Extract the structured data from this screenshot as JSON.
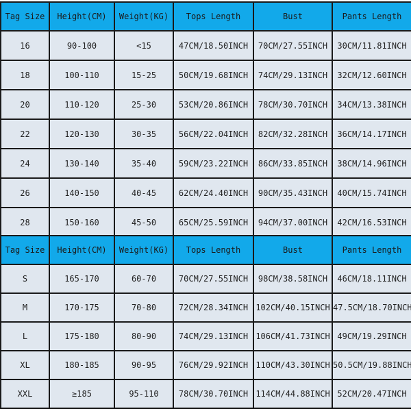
{
  "colors": {
    "header": "#12a9ea",
    "cell": "#e0e7ef",
    "border": "#1a1a1a"
  },
  "headers": [
    "Tag Size",
    "Height(CM)",
    "Weight(KG)",
    "Tops Length",
    "Bust",
    "Pants Length"
  ],
  "kids_rows": [
    [
      "16",
      "90-100",
      "<15",
      "47CM/18.50INCH",
      "70CM/27.55INCH",
      "30CM/11.81INCH"
    ],
    [
      "18",
      "100-110",
      "15-25",
      "50CM/19.68INCH",
      "74CM/29.13INCH",
      "32CM/12.60INCH"
    ],
    [
      "20",
      "110-120",
      "25-30",
      "53CM/20.86INCH",
      "78CM/30.70INCH",
      "34CM/13.38INCH"
    ],
    [
      "22",
      "120-130",
      "30-35",
      "56CM/22.04INCH",
      "82CM/32.28INCH",
      "36CM/14.17INCH"
    ],
    [
      "24",
      "130-140",
      "35-40",
      "59CM/23.22INCH",
      "86CM/33.85INCH",
      "38CM/14.96INCH"
    ],
    [
      "26",
      "140-150",
      "40-45",
      "62CM/24.40INCH",
      "90CM/35.43INCH",
      "40CM/15.74INCH"
    ],
    [
      "28",
      "150-160",
      "45-50",
      "65CM/25.59INCH",
      "94CM/37.00INCH",
      "42CM/16.53INCH"
    ]
  ],
  "adult_rows": [
    [
      "S",
      "165-170",
      "60-70",
      "70CM/27.55INCH",
      "98CM/38.58INCH",
      "46CM/18.11INCH"
    ],
    [
      "M",
      "170-175",
      "70-80",
      "72CM/28.34INCH",
      "102CM/40.15INCH",
      "47.5CM/18.70INCH"
    ],
    [
      "L",
      "175-180",
      "80-90",
      "74CM/29.13INCH",
      "106CM/41.73INCH",
      "49CM/19.29INCH"
    ],
    [
      "XL",
      "180-185",
      "90-95",
      "76CM/29.92INCH",
      "110CM/43.30INCH",
      "50.5CM/19.88INCH"
    ],
    [
      "XXL",
      "≥185",
      "95-110",
      "78CM/30.70INCH",
      "114CM/44.88INCH",
      "52CM/20.47INCH"
    ]
  ]
}
